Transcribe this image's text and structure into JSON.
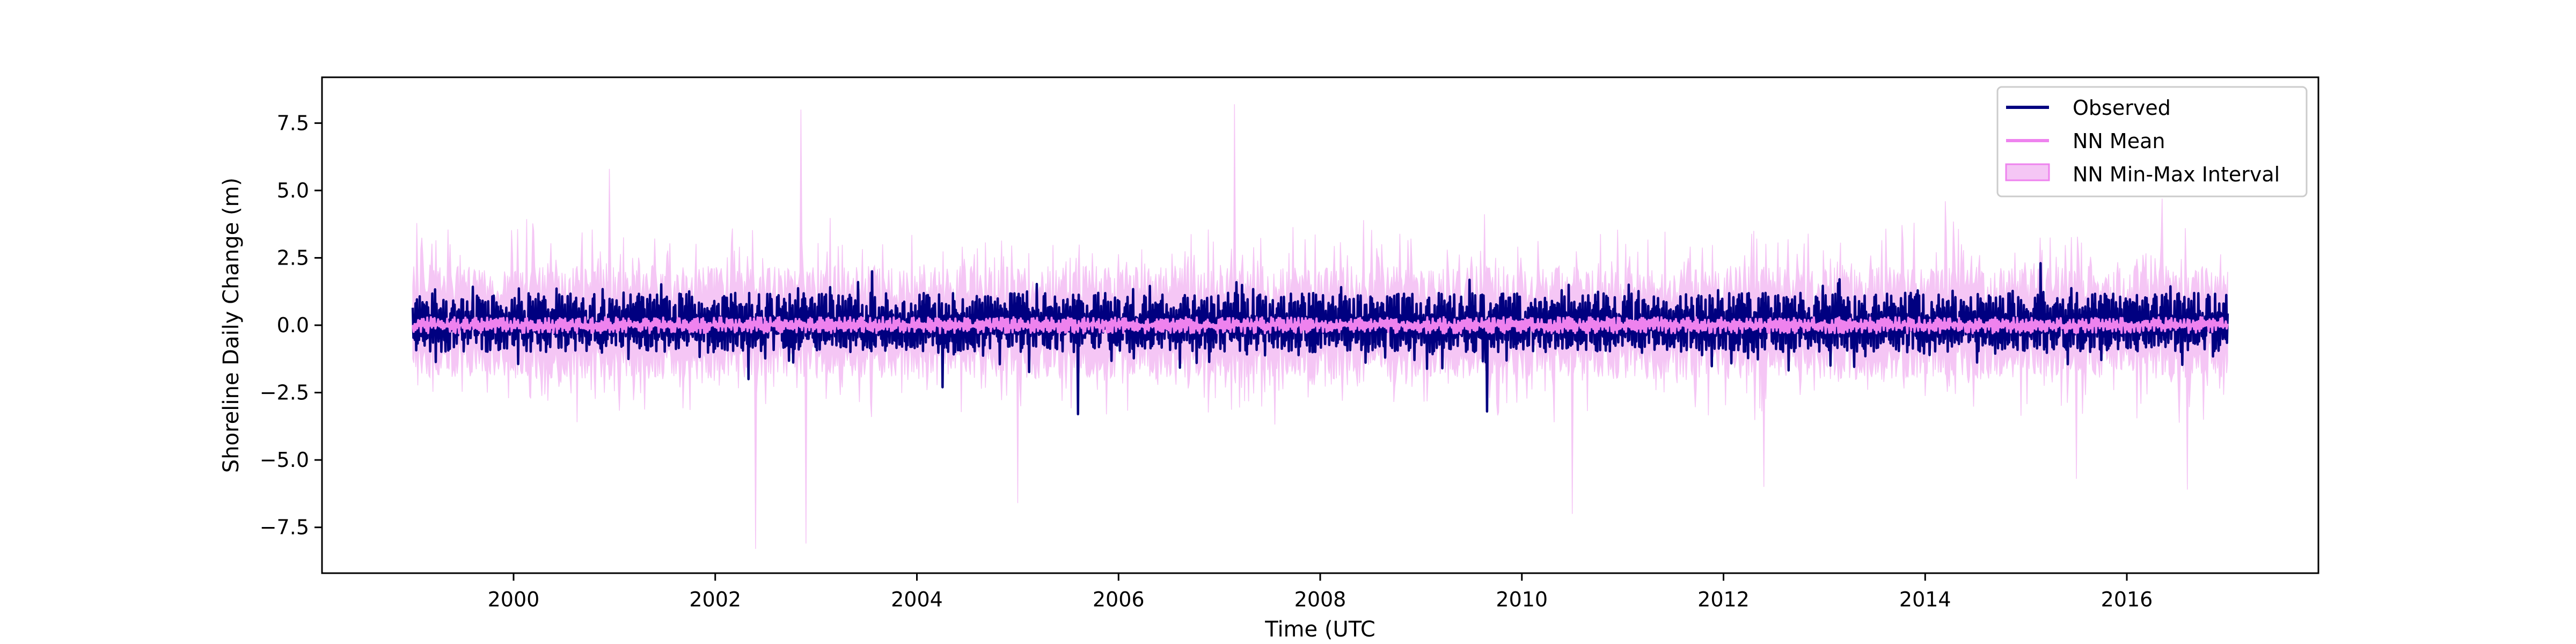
{
  "chart_data": {
    "type": "line",
    "xlabel": "Time (UTC",
    "ylabel": "Shoreline Daily Change (m)",
    "xlim": [
      1998.1,
      2017.9
    ],
    "ylim": [
      -9.2,
      9.2
    ],
    "x_range": [
      1999.0,
      2017.0
    ],
    "xticks": [
      2000,
      2002,
      2004,
      2006,
      2008,
      2010,
      2012,
      2014,
      2016
    ],
    "xtick_labels": [
      "2000",
      "2002",
      "2004",
      "2006",
      "2008",
      "2010",
      "2012",
      "2014",
      "2016"
    ],
    "yticks": [
      -7.5,
      -5.0,
      -2.5,
      0.0,
      2.5,
      5.0,
      7.5
    ],
    "ytick_labels": [
      "−7.5",
      "−5.0",
      "−2.5",
      "0.0",
      "2.5",
      "5.0",
      "7.5"
    ],
    "grid": false,
    "legend_position": "top-right",
    "series": [
      {
        "name": "Observed",
        "color": "#000080",
        "kind": "line",
        "typical_range": [
          -1.0,
          1.2
        ],
        "peaks": [
          {
            "x": 2002.33,
            "y": -2.0
          },
          {
            "x": 2003.55,
            "y": 2.0
          },
          {
            "x": 2004.25,
            "y": -2.3
          },
          {
            "x": 2005.05,
            "y": -2.6
          },
          {
            "x": 2005.6,
            "y": -3.3
          },
          {
            "x": 2009.65,
            "y": -3.2
          },
          {
            "x": 2012.25,
            "y": -3.4
          },
          {
            "x": 2015.15,
            "y": 2.3
          }
        ]
      },
      {
        "name": "NN Mean",
        "color": "#ee82ee",
        "kind": "line",
        "typical_range": [
          -0.3,
          0.3
        ]
      },
      {
        "name": "NN Min-Max Interval",
        "color": "#f5c6f5",
        "kind": "band",
        "typical_range": [
          -2.0,
          2.2
        ],
        "peaks": [
          {
            "x": 2002.4,
            "y": -8.3
          },
          {
            "x": 2002.85,
            "y": 8.0
          },
          {
            "x": 2002.9,
            "y": -8.1
          },
          {
            "x": 2007.15,
            "y": 8.2
          },
          {
            "x": 2000.95,
            "y": 5.8
          },
          {
            "x": 2005.0,
            "y": -6.6
          },
          {
            "x": 2010.5,
            "y": -7.0
          },
          {
            "x": 2012.4,
            "y": -6.0
          },
          {
            "x": 2015.5,
            "y": -5.7
          },
          {
            "x": 2016.6,
            "y": -6.1
          },
          {
            "x": 2014.2,
            "y": 4.6
          },
          {
            "x": 2016.35,
            "y": 4.7
          }
        ]
      }
    ]
  }
}
